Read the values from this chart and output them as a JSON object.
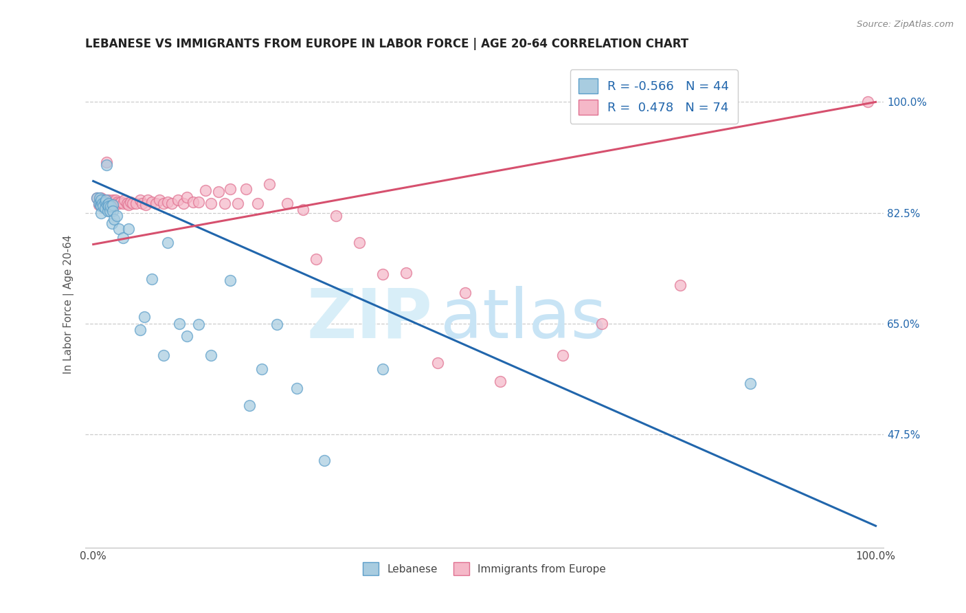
{
  "title": "LEBANESE VS IMMIGRANTS FROM EUROPE IN LABOR FORCE | AGE 20-64 CORRELATION CHART",
  "source": "Source: ZipAtlas.com",
  "ylabel": "In Labor Force | Age 20-64",
  "legend_r_blue": "-0.566",
  "legend_n_blue": "44",
  "legend_r_pink": "0.478",
  "legend_n_pink": "74",
  "blue_fill": "#a8cce0",
  "blue_edge": "#5b9ec9",
  "pink_fill": "#f5b8c8",
  "pink_edge": "#e07090",
  "blue_line_color": "#2166ac",
  "pink_line_color": "#d6506e",
  "watermark_zip_color": "#d8eef8",
  "watermark_atlas_color": "#c8e4f5",
  "grid_color": "#cccccc",
  "blue_line_x0": 0.0,
  "blue_line_y0": 0.875,
  "blue_line_x1": 1.0,
  "blue_line_y1": 0.33,
  "pink_line_x0": 0.0,
  "pink_line_y0": 0.775,
  "pink_line_x1": 1.0,
  "pink_line_y1": 1.0,
  "xlim_min": -0.01,
  "xlim_max": 1.01,
  "ylim_min": 0.295,
  "ylim_max": 1.065,
  "ytick_vals": [
    0.475,
    0.65,
    0.825,
    1.0
  ],
  "ytick_labels_right": [
    "47.5%",
    "65.0%",
    "82.5%",
    "100.0%"
  ],
  "xtick_vals": [
    0.0,
    0.25,
    0.5,
    0.75,
    1.0
  ],
  "xtick_labels": [
    "0.0%",
    "",
    "",
    "",
    "100.0%"
  ],
  "blue_scatter_x": [
    0.005,
    0.007,
    0.008,
    0.009,
    0.01,
    0.01,
    0.01,
    0.012,
    0.013,
    0.015,
    0.015,
    0.016,
    0.017,
    0.018,
    0.019,
    0.02,
    0.02,
    0.021,
    0.022,
    0.024,
    0.025,
    0.025,
    0.027,
    0.03,
    0.033,
    0.038,
    0.045,
    0.06,
    0.065,
    0.075,
    0.09,
    0.095,
    0.11,
    0.12,
    0.135,
    0.15,
    0.175,
    0.2,
    0.215,
    0.235,
    0.26,
    0.295,
    0.84,
    0.37
  ],
  "blue_scatter_y": [
    0.848,
    0.84,
    0.848,
    0.838,
    0.845,
    0.835,
    0.825,
    0.84,
    0.835,
    0.842,
    0.832,
    0.845,
    0.9,
    0.838,
    0.828,
    0.84,
    0.835,
    0.828,
    0.835,
    0.808,
    0.838,
    0.828,
    0.815,
    0.82,
    0.8,
    0.785,
    0.8,
    0.64,
    0.66,
    0.72,
    0.6,
    0.778,
    0.65,
    0.63,
    0.648,
    0.6,
    0.718,
    0.52,
    0.578,
    0.648,
    0.548,
    0.433,
    0.555,
    0.578
  ],
  "pink_scatter_x": [
    0.005,
    0.007,
    0.008,
    0.009,
    0.01,
    0.01,
    0.011,
    0.012,
    0.013,
    0.014,
    0.015,
    0.015,
    0.016,
    0.017,
    0.018,
    0.019,
    0.02,
    0.02,
    0.021,
    0.022,
    0.023,
    0.025,
    0.026,
    0.027,
    0.028,
    0.03,
    0.031,
    0.033,
    0.035,
    0.038,
    0.04,
    0.043,
    0.045,
    0.048,
    0.05,
    0.055,
    0.06,
    0.063,
    0.067,
    0.07,
    0.075,
    0.08,
    0.085,
    0.09,
    0.095,
    0.1,
    0.108,
    0.115,
    0.12,
    0.128,
    0.135,
    0.143,
    0.15,
    0.16,
    0.168,
    0.175,
    0.185,
    0.195,
    0.21,
    0.225,
    0.248,
    0.268,
    0.285,
    0.31,
    0.34,
    0.37,
    0.4,
    0.44,
    0.475,
    0.52,
    0.6,
    0.65,
    0.75,
    0.99
  ],
  "pink_scatter_y": [
    0.848,
    0.838,
    0.845,
    0.842,
    0.848,
    0.838,
    0.84,
    0.845,
    0.84,
    0.835,
    0.845,
    0.838,
    0.842,
    0.905,
    0.84,
    0.838,
    0.845,
    0.84,
    0.842,
    0.838,
    0.84,
    0.845,
    0.842,
    0.838,
    0.845,
    0.84,
    0.842,
    0.84,
    0.842,
    0.84,
    0.845,
    0.84,
    0.838,
    0.842,
    0.84,
    0.84,
    0.845,
    0.84,
    0.838,
    0.845,
    0.842,
    0.84,
    0.845,
    0.84,
    0.842,
    0.84,
    0.845,
    0.84,
    0.85,
    0.842,
    0.842,
    0.86,
    0.84,
    0.858,
    0.84,
    0.862,
    0.84,
    0.862,
    0.84,
    0.87,
    0.84,
    0.83,
    0.752,
    0.82,
    0.778,
    0.728,
    0.73,
    0.588,
    0.698,
    0.558,
    0.6,
    0.65,
    0.71,
    1.0
  ]
}
